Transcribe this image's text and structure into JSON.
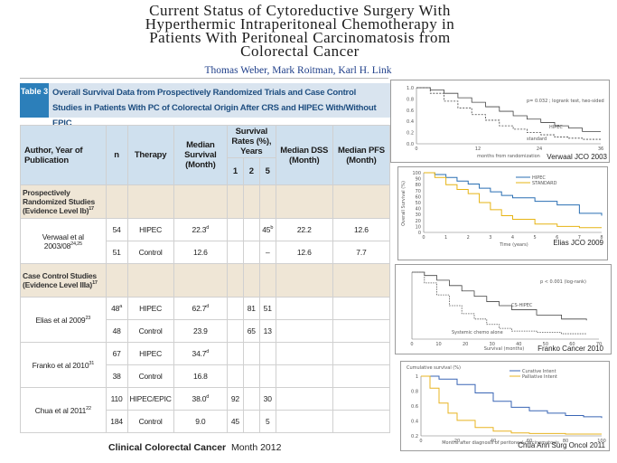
{
  "header": {
    "title_lines": [
      "Current Status of Cytoreductive Surgery With",
      "Hyperthermic Intraperitoneal Chemotherapy in",
      "Patients With Peritoneal Carcinomatosis from",
      "Colorectal Cancer"
    ],
    "authors": "Thomas Weber, Mark Roitman, Karl H. Link"
  },
  "table": {
    "number": "Table 3",
    "caption": "Overall Survival Data from Prospectively Randomized Trials and Case Control Studies in Patients With PC of Colorectal Origin After CRS and HIPEC With/Without EPIC",
    "headers": {
      "author": "Author, Year of Publication",
      "n": "n",
      "therapy": "Therapy",
      "median_survival": "Median Survival (Month)",
      "survival_rates": "Survival Rates (%), Years",
      "years": [
        "1",
        "2",
        "5"
      ],
      "median_dss": "Median DSS (Month)",
      "median_pfs": "Median PFS (Month)"
    },
    "sections": [
      {
        "title": "Prospectively Randomized Studies (Evidence Level Ib)",
        "title_sup": "17",
        "studies": [
          {
            "author": "Verwaal et al 2003/08",
            "author_sup": "24,25",
            "rows": [
              {
                "n": "54",
                "n_sup": "",
                "therapy": "HIPEC",
                "median": "22.3",
                "median_sup": "d",
                "y1": "",
                "y2": "",
                "y5": "45",
                "y5_sup": "b",
                "dss": "22.2",
                "pfs": "12.6"
              },
              {
                "n": "51",
                "n_sup": "",
                "therapy": "Control",
                "median": "12.6",
                "median_sup": "",
                "y1": "",
                "y2": "",
                "y5": "–",
                "y5_sup": "",
                "dss": "12.6",
                "pfs": "7.7"
              }
            ]
          }
        ]
      },
      {
        "title": "Case Control Studies (Evidence Level IIIa)",
        "title_sup": "17",
        "studies": [
          {
            "author": "Elias et al 2009",
            "author_sup": "23",
            "rows": [
              {
                "n": "48",
                "n_sup": "a",
                "therapy": "HIPEC",
                "median": "62.7",
                "median_sup": "d",
                "y1": "",
                "y2": "81",
                "y5": "51",
                "y5_sup": "",
                "dss": "",
                "pfs": ""
              },
              {
                "n": "48",
                "n_sup": "",
                "therapy": "Control",
                "median": "23.9",
                "median_sup": "",
                "y1": "",
                "y2": "65",
                "y5": "13",
                "y5_sup": "",
                "dss": "",
                "pfs": ""
              }
            ]
          },
          {
            "author": "Franko et al 2010",
            "author_sup": "31",
            "rows": [
              {
                "n": "67",
                "n_sup": "",
                "therapy": "HIPEC",
                "median": "34.7",
                "median_sup": "d",
                "y1": "",
                "y2": "",
                "y5": "",
                "y5_sup": "",
                "dss": "",
                "pfs": ""
              },
              {
                "n": "38",
                "n_sup": "",
                "therapy": "Control",
                "median": "16.8",
                "median_sup": "",
                "y1": "",
                "y2": "",
                "y5": "",
                "y5_sup": "",
                "dss": "",
                "pfs": ""
              }
            ]
          },
          {
            "author": "Chua et al 2011",
            "author_sup": "22",
            "rows": [
              {
                "n": "110",
                "n_sup": "",
                "therapy": "HIPEC/EPIC",
                "median": "38.0",
                "median_sup": "d",
                "y1": "92",
                "y2": "",
                "y5": "30",
                "y5_sup": "",
                "dss": "",
                "pfs": ""
              },
              {
                "n": "184",
                "n_sup": "",
                "therapy": "Control",
                "median": "9.0",
                "median_sup": "",
                "y1": "45",
                "y2": "",
                "y5": "5",
                "y5_sup": "",
                "dss": "",
                "pfs": ""
              }
            ]
          }
        ]
      }
    ]
  },
  "footer": {
    "journal": "Clinical Colorectal Cancer",
    "date": "Month 2012"
  },
  "chart_data": [
    {
      "type": "line",
      "caption": "Verwaal JCO 2003",
      "annotation": "p= 0.032 ; logrank test, two-sided",
      "y_ticks": [
        "1.0",
        "0.8",
        "0.6",
        "0.4",
        "0.2",
        "0.0"
      ],
      "x_ticks": [
        "0",
        "12",
        "24",
        "36"
      ],
      "xlabel": "months from randomization",
      "ylim": [
        0,
        1
      ],
      "xlim": [
        0,
        40
      ],
      "series": [
        {
          "name": "HIPEC",
          "x": [
            0,
            3,
            6,
            9,
            12,
            15,
            18,
            21,
            24,
            27,
            30,
            33,
            36,
            40
          ],
          "y": [
            1.0,
            0.96,
            0.9,
            0.82,
            0.74,
            0.66,
            0.58,
            0.5,
            0.44,
            0.38,
            0.32,
            0.28,
            0.22,
            0.22
          ]
        },
        {
          "name": "standard",
          "x": [
            0,
            3,
            6,
            9,
            12,
            15,
            18,
            21,
            24,
            27,
            30,
            33,
            36,
            40
          ],
          "y": [
            1.0,
            0.9,
            0.76,
            0.64,
            0.52,
            0.42,
            0.32,
            0.26,
            0.2,
            0.16,
            0.12,
            0.1,
            0.08,
            0.08
          ]
        }
      ]
    },
    {
      "type": "line",
      "caption": "Elias JCO 2009",
      "ylabel": "Overall Survival (%)",
      "xlabel": "Time (years)",
      "y_ticks": [
        "100",
        "90",
        "80",
        "70",
        "60",
        "50",
        "40",
        "30",
        "20",
        "10",
        "0"
      ],
      "x_ticks": [
        "0",
        "1",
        "2",
        "3",
        "4",
        "5",
        "6",
        "7",
        "8"
      ],
      "ylim": [
        0,
        100
      ],
      "xlim": [
        0,
        8
      ],
      "series": [
        {
          "name": "HIPEC",
          "x": [
            0,
            0.5,
            1,
            1.5,
            2,
            2.5,
            3,
            3.5,
            4,
            5,
            6,
            7,
            8
          ],
          "y": [
            100,
            97,
            92,
            86,
            81,
            74,
            68,
            62,
            58,
            52,
            46,
            32,
            28
          ]
        },
        {
          "name": "STANDARD",
          "x": [
            0,
            0.5,
            1,
            1.5,
            2,
            2.5,
            3,
            3.5,
            4,
            5,
            6,
            7,
            8
          ],
          "y": [
            100,
            92,
            80,
            72,
            65,
            50,
            38,
            28,
            22,
            14,
            10,
            8,
            8
          ]
        }
      ]
    },
    {
      "type": "line",
      "caption": "Franko Cancer 2010",
      "annotation": "p < 0.001 (log-rank)",
      "xlabel": "Survival (months)",
      "x_ticks": [
        "0",
        "10",
        "20",
        "30",
        "40",
        "50",
        "60",
        "70"
      ],
      "ylim": [
        0,
        1
      ],
      "xlim": [
        0,
        75
      ],
      "series": [
        {
          "name": "CS-HIPEC",
          "x": [
            0,
            5,
            10,
            15,
            20,
            25,
            30,
            35,
            40,
            50,
            60,
            70
          ],
          "y": [
            1.0,
            0.95,
            0.88,
            0.8,
            0.72,
            0.64,
            0.56,
            0.5,
            0.44,
            0.36,
            0.3,
            0.28
          ]
        },
        {
          "name": "Systemic chemo alone",
          "x": [
            0,
            5,
            10,
            15,
            20,
            25,
            30,
            35,
            40,
            50,
            60,
            70
          ],
          "y": [
            1.0,
            0.84,
            0.66,
            0.5,
            0.38,
            0.3,
            0.22,
            0.16,
            0.12,
            0.1,
            0.08,
            0.08
          ]
        }
      ]
    },
    {
      "type": "line",
      "caption": "Chua Ann Surg Oncol 2011",
      "title": "Cumulative survival (%)",
      "xlabel": "Months after diagnosis of peritoneal carcinomatosis",
      "y_ticks": [
        "1",
        "0.8",
        "0.6",
        "0.4",
        "0.2"
      ],
      "x_ticks": [
        "0",
        "20",
        "40",
        "60",
        "80",
        "100"
      ],
      "ylim": [
        0,
        1
      ],
      "xlim": [
        0,
        100
      ],
      "series": [
        {
          "name": "Curative Intent",
          "x": [
            0,
            10,
            20,
            30,
            40,
            50,
            60,
            70,
            80,
            90,
            100
          ],
          "y": [
            1.0,
            0.95,
            0.86,
            0.72,
            0.58,
            0.48,
            0.42,
            0.38,
            0.34,
            0.32,
            0.3
          ]
        },
        {
          "name": "Palliative Intent",
          "x": [
            0,
            5,
            10,
            15,
            20,
            30,
            40,
            50,
            60,
            80,
            100
          ],
          "y": [
            1.0,
            0.8,
            0.55,
            0.38,
            0.26,
            0.14,
            0.08,
            0.05,
            0.04,
            0.03,
            0.03
          ]
        }
      ]
    }
  ],
  "colors": {
    "caption_num_bg": "#2c7fba",
    "caption_bg": "#d9e4ef",
    "header_bg": "#cfe0ee",
    "section_bg": "#efe6d6",
    "authors": "#1f3f8a",
    "elias_hipec": "#2a6fb3",
    "elias_standard": "#e6b414",
    "chua_curative": "#3a66b5",
    "chua_palliative": "#e8b422"
  }
}
